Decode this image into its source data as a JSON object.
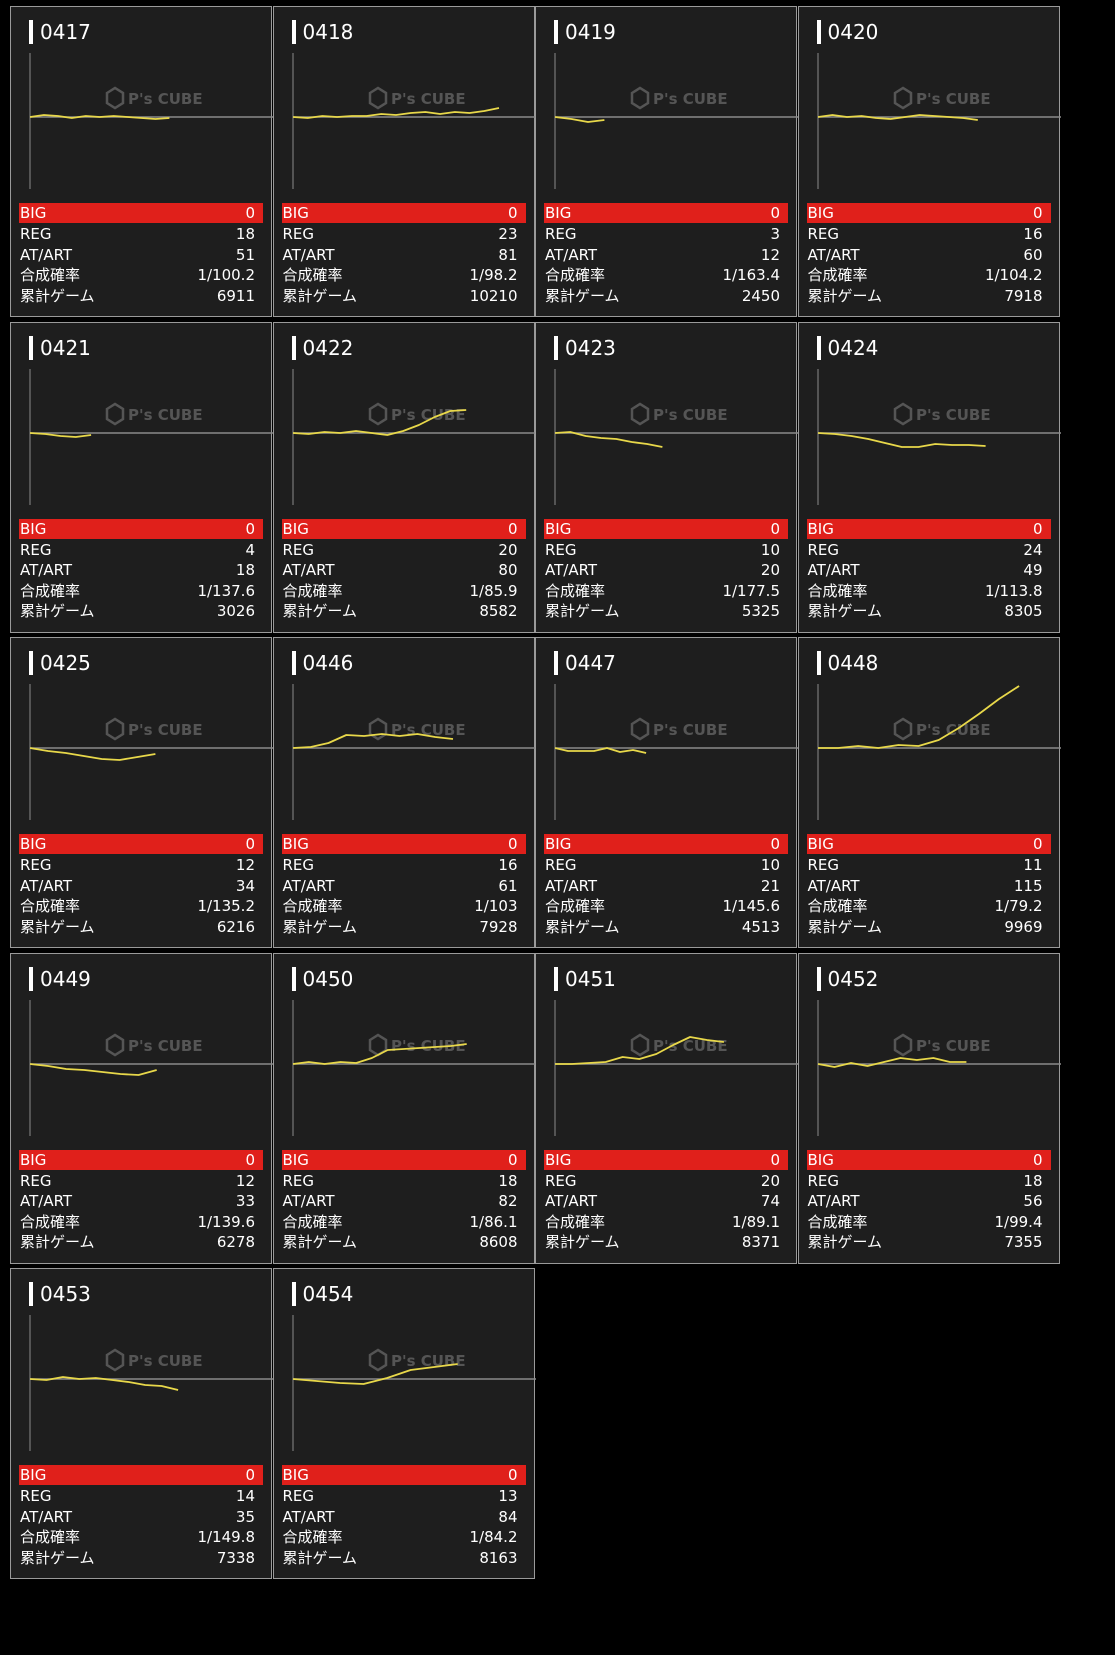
{
  "labels": {
    "big": "BIG",
    "reg": "REG",
    "at": "AT/ART",
    "prob": "合成確率",
    "games": "累計ゲーム"
  },
  "watermark": "P's CUBE",
  "colors": {
    "background": "#000000",
    "card": "#1e1e1e",
    "border": "#9a9a9a",
    "big_bar": "#e0201b",
    "line": "#e8d84a",
    "baseline": "#8a8a8a"
  },
  "machines": [
    {
      "id": "0417",
      "big": "0",
      "reg": "18",
      "at": "51",
      "prob": "1/100.2",
      "games": "6911",
      "graph": [
        0,
        2,
        1,
        -1,
        1,
        0,
        1,
        0,
        -1,
        -2,
        -1
      ]
    },
    {
      "id": "0418",
      "big": "0",
      "reg": "23",
      "at": "81",
      "prob": "1/98.2",
      "games": "10210",
      "graph": [
        0,
        -1,
        1,
        0,
        1,
        1,
        3,
        2,
        4,
        5,
        3,
        5,
        4,
        6,
        9
      ]
    },
    {
      "id": "0419",
      "big": "0",
      "reg": "3",
      "at": "12",
      "prob": "1/163.4",
      "games": "2450",
      "graph": [
        0,
        -2,
        -5,
        -3
      ]
    },
    {
      "id": "0420",
      "big": "0",
      "reg": "16",
      "at": "60",
      "prob": "1/104.2",
      "games": "7918",
      "graph": [
        0,
        2,
        0,
        1,
        -1,
        -2,
        0,
        2,
        1,
        0,
        -1,
        -3
      ]
    },
    {
      "id": "0421",
      "big": "0",
      "reg": "4",
      "at": "18",
      "prob": "1/137.6",
      "games": "3026",
      "graph": [
        0,
        -1,
        -3,
        -4,
        -2
      ]
    },
    {
      "id": "0422",
      "big": "0",
      "reg": "20",
      "at": "80",
      "prob": "1/85.9",
      "games": "8582",
      "graph": [
        0,
        -1,
        1,
        0,
        2,
        0,
        -2,
        2,
        8,
        16,
        22,
        23
      ]
    },
    {
      "id": "0423",
      "big": "0",
      "reg": "10",
      "at": "20",
      "prob": "1/177.5",
      "games": "5325",
      "graph": [
        0,
        1,
        -3,
        -5,
        -6,
        -9,
        -11,
        -14
      ]
    },
    {
      "id": "0424",
      "big": "0",
      "reg": "24",
      "at": "49",
      "prob": "1/113.8",
      "games": "8305",
      "graph": [
        0,
        -1,
        -3,
        -6,
        -10,
        -14,
        -14,
        -11,
        -12,
        -12,
        -13
      ]
    },
    {
      "id": "0425",
      "big": "0",
      "reg": "12",
      "at": "34",
      "prob": "1/135.2",
      "games": "6216",
      "graph": [
        0,
        -3,
        -5,
        -8,
        -11,
        -12,
        -9,
        -6
      ]
    },
    {
      "id": "0446",
      "big": "0",
      "reg": "16",
      "at": "61",
      "prob": "1/103",
      "games": "7928",
      "graph": [
        0,
        1,
        5,
        13,
        12,
        14,
        12,
        14,
        11,
        9
      ]
    },
    {
      "id": "0447",
      "big": "0",
      "reg": "10",
      "at": "21",
      "prob": "1/145.6",
      "games": "4513",
      "graph": [
        0,
        -3,
        -3,
        -3,
        0,
        -4,
        -2,
        -5
      ]
    },
    {
      "id": "0448",
      "big": "0",
      "reg": "11",
      "at": "115",
      "prob": "1/79.2",
      "games": "9969",
      "graph": [
        0,
        0,
        2,
        0,
        3,
        2,
        8,
        20,
        34,
        49,
        62
      ]
    },
    {
      "id": "0449",
      "big": "0",
      "reg": "12",
      "at": "33",
      "prob": "1/139.6",
      "games": "6278",
      "graph": [
        0,
        -2,
        -5,
        -6,
        -8,
        -10,
        -11,
        -6
      ]
    },
    {
      "id": "0450",
      "big": "0",
      "reg": "18",
      "at": "82",
      "prob": "1/86.1",
      "games": "8608",
      "graph": [
        0,
        2,
        0,
        2,
        1,
        6,
        14,
        15,
        16,
        17,
        18,
        20
      ]
    },
    {
      "id": "0451",
      "big": "0",
      "reg": "20",
      "at": "74",
      "prob": "1/89.1",
      "games": "8371",
      "graph": [
        0,
        0,
        1,
        2,
        7,
        5,
        10,
        19,
        27,
        24,
        22
      ]
    },
    {
      "id": "0452",
      "big": "0",
      "reg": "18",
      "at": "56",
      "prob": "1/99.4",
      "games": "7355",
      "graph": [
        0,
        -3,
        1,
        -2,
        2,
        6,
        4,
        6,
        2,
        2
      ]
    },
    {
      "id": "0453",
      "big": "0",
      "reg": "14",
      "at": "35",
      "prob": "1/149.8",
      "games": "7338",
      "graph": [
        0,
        -1,
        2,
        0,
        1,
        -1,
        -3,
        -6,
        -7,
        -11
      ]
    },
    {
      "id": "0454",
      "big": "0",
      "reg": "13",
      "at": "84",
      "prob": "1/84.2",
      "games": "8163",
      "graph": [
        0,
        -2,
        -4,
        -5,
        1,
        9,
        12,
        15
      ]
    }
  ]
}
